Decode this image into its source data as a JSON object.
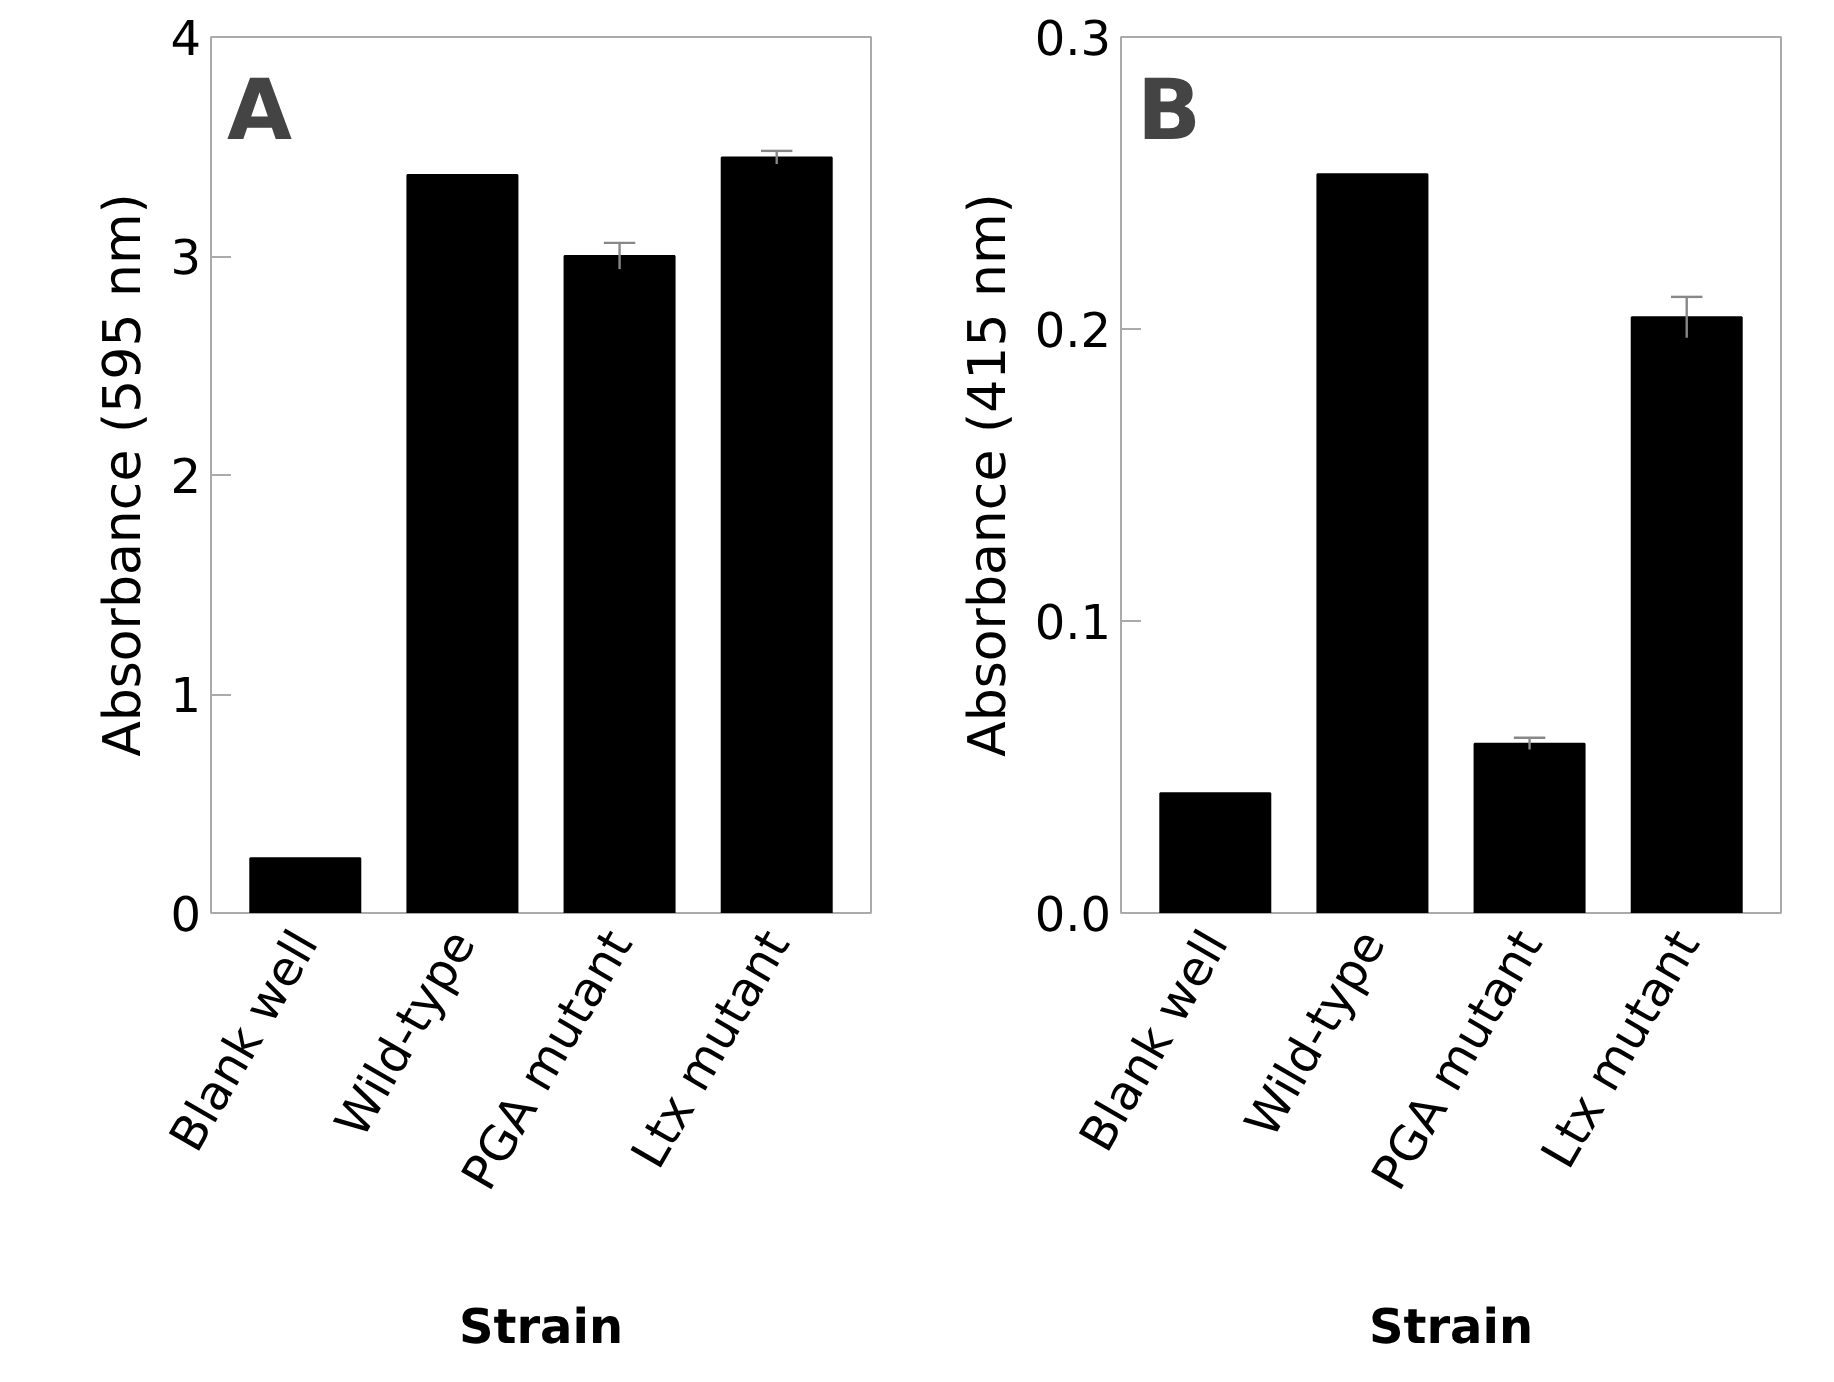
{
  "chart_data": [
    {
      "type": "bar",
      "title": "A",
      "categories": [
        "Blank well",
        "Wild-type",
        "PGA mutant",
        "Ltx mutant"
      ],
      "values": [
        0.25,
        3.37,
        3.0,
        3.45
      ],
      "errors": [
        null,
        null,
        0.06,
        0.03
      ],
      "color": "#000000",
      "ylim": [
        0,
        4
      ],
      "yticks": [
        0,
        1,
        2,
        3,
        4
      ],
      "xlabel": "Strain",
      "ylabel": "Absorbance (595 nm)",
      "grid": false
    },
    {
      "type": "bar",
      "title": "B",
      "categories": [
        "Blank well",
        "Wild-type",
        "PGA mutant",
        "Ltx mutant"
      ],
      "values": [
        0.041,
        0.253,
        0.058,
        0.204
      ],
      "errors": [
        null,
        null,
        0.002,
        0.007
      ],
      "color": "#000000",
      "ylim": [
        0,
        0.3
      ],
      "yticks": [
        {
          "value": 0,
          "label": "0.0"
        },
        0.1,
        0.2,
        0.3
      ],
      "xlabel": "Strain",
      "ylabel": "Absorbance (415 nm)",
      "grid": false
    }
  ]
}
